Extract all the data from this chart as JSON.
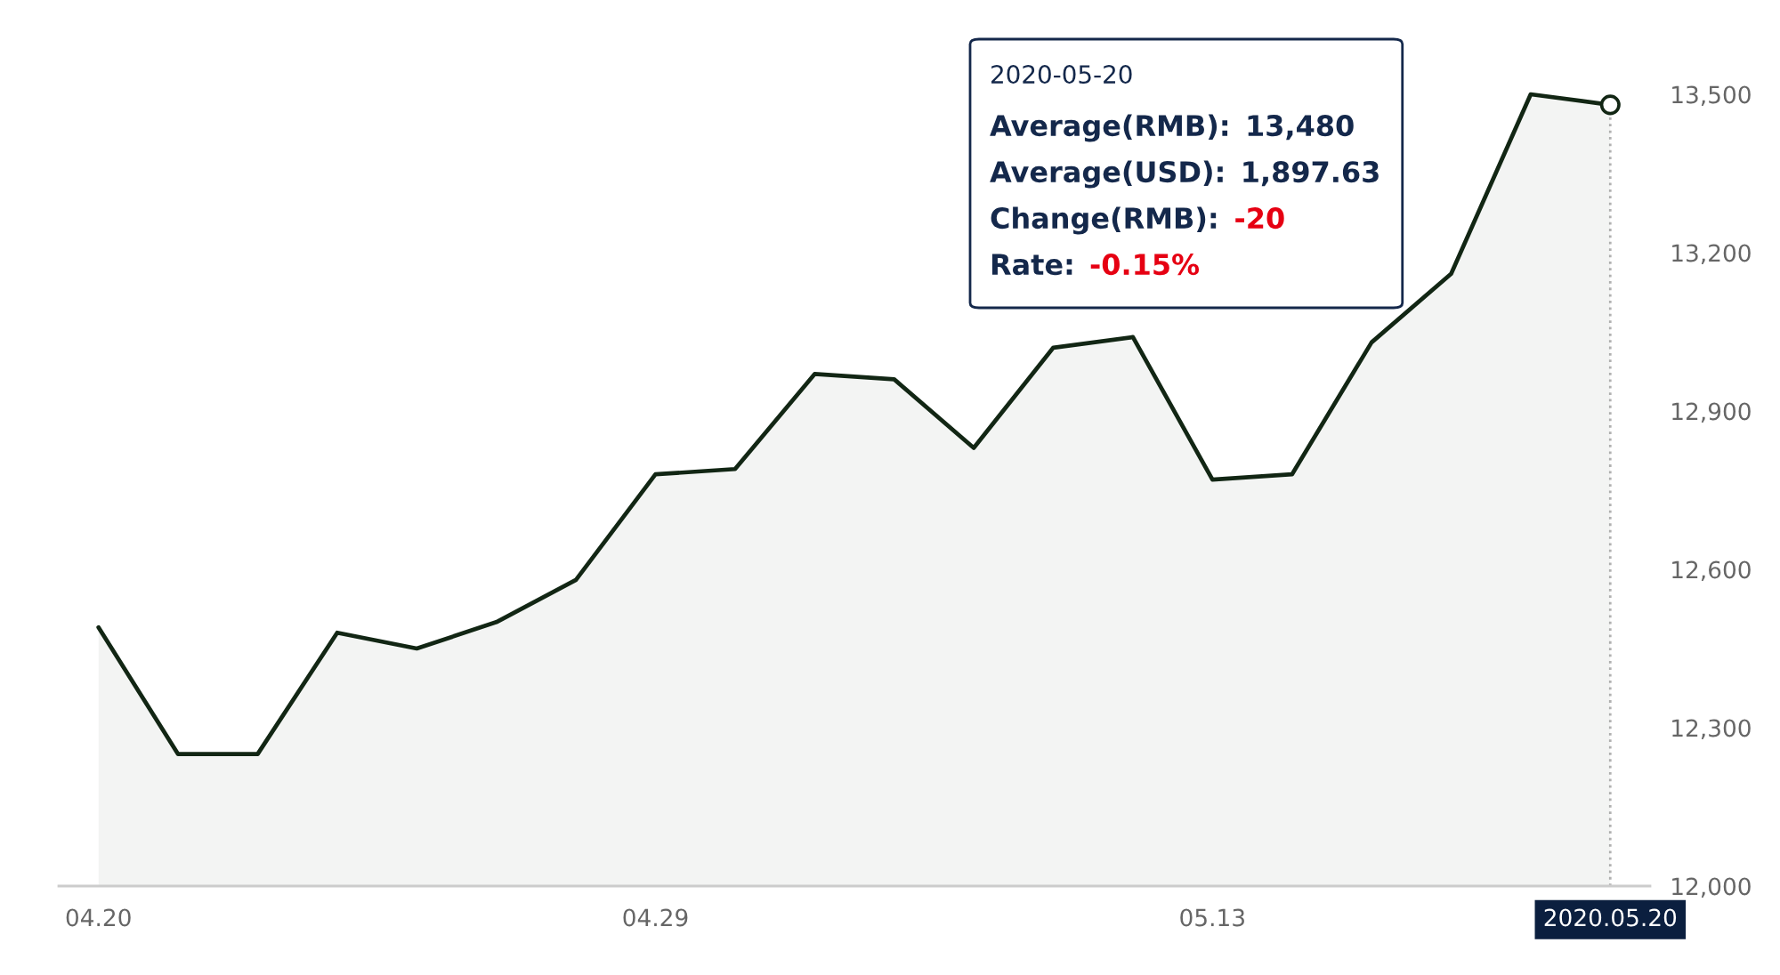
{
  "chart_data": {
    "type": "area",
    "categories": [
      "04.20",
      null,
      null,
      null,
      null,
      null,
      null,
      "04.29",
      null,
      null,
      null,
      null,
      null,
      null,
      "05.13",
      null,
      null,
      null,
      null,
      "2020.05.20"
    ],
    "series": [
      {
        "color": "#122614",
        "values": [
          12490,
          12250,
          12250,
          12480,
          12450,
          12500,
          12580,
          12780,
          12790,
          12970,
          12960,
          12830,
          13020,
          13040,
          12770,
          12780,
          13030,
          13160,
          13500,
          13480
        ]
      }
    ],
    "ylim": [
      12000,
      13500
    ],
    "yticks": [
      {
        "value": 12000,
        "label": "12,000"
      },
      {
        "value": 12300,
        "label": "12,300"
      },
      {
        "value": 12600,
        "label": "12,600"
      },
      {
        "value": 12900,
        "label": "12,900"
      },
      {
        "value": 13200,
        "label": "13,200"
      },
      {
        "value": 13500,
        "label": "13,500"
      }
    ],
    "ref_lines": [
      {
        "axis": "x",
        "value": "2020.05.20",
        "color": "#b4b4b4",
        "line_style": "dotted"
      }
    ],
    "annotations": [
      "2020-05-20\nAverage(RMB): 13,480\nAverage(USD): 1,897.63\nChange(RMB): -20\nRate: -0.15%"
    ]
  }
}
